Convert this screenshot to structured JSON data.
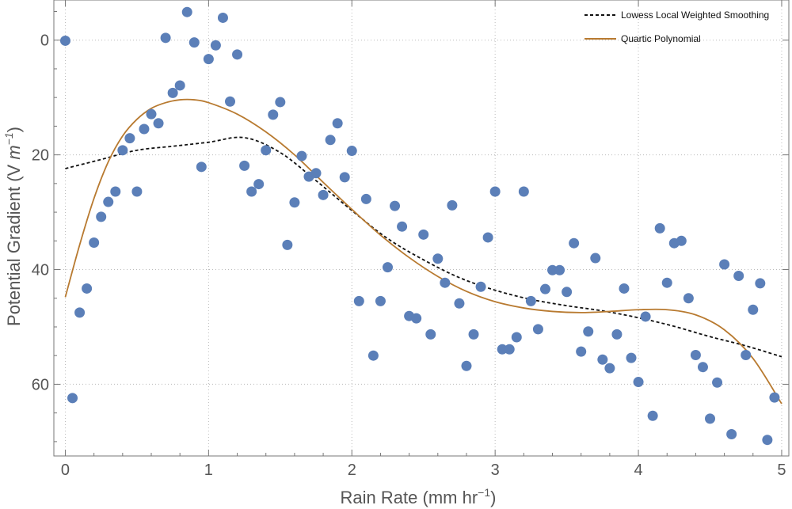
{
  "chart_data": {
    "type": "scatter",
    "xlabel": "Rain Rate (mm hr",
    "xlabel_sup": "−1",
    "xlabel_close": ")",
    "ylabel": "Potential Gradient (V ",
    "ylabel_m": "m",
    "ylabel_sup": "−1",
    "ylabel_close": ")",
    "xlim": [
      -0.08,
      5.05
    ],
    "ylim": [
      72.5,
      -7
    ],
    "y_reversed": true,
    "grid": "dotted",
    "legend_position": "top-right",
    "xticks": [
      0,
      1,
      2,
      3,
      4,
      5
    ],
    "xtick_labels": [
      "0",
      "1",
      "2",
      "3",
      "4",
      "5"
    ],
    "yticks": [
      0,
      20,
      40,
      60
    ],
    "ytick_labels": [
      "0",
      "20",
      "40",
      "60"
    ],
    "colors": {
      "points": "#5b7fb8",
      "lowess": "#111111",
      "quartic": "#b87a30",
      "grid": "#bbbbbb",
      "frame": "#777777"
    },
    "series": [
      {
        "name": "",
        "kind": "scatter",
        "x": [
          0.0,
          0.05,
          0.1,
          0.15,
          0.2,
          0.25,
          0.3,
          0.35,
          0.4,
          0.45,
          0.5,
          0.55,
          0.6,
          0.65,
          0.7,
          0.75,
          0.8,
          0.85,
          0.9,
          0.95,
          1.0,
          1.05,
          1.1,
          1.15,
          1.2,
          1.25,
          1.3,
          1.35,
          1.4,
          1.45,
          1.5,
          1.55,
          1.6,
          1.65,
          1.7,
          1.75,
          1.8,
          1.85,
          1.9,
          1.95,
          2.0,
          2.05,
          2.1,
          2.15,
          2.2,
          2.25,
          2.3,
          2.35,
          2.4,
          2.45,
          2.5,
          2.55,
          2.6,
          2.65,
          2.7,
          2.75,
          2.8,
          2.85,
          2.9,
          2.95,
          3.0,
          3.05,
          3.1,
          3.15,
          3.2,
          3.25,
          3.3,
          3.35,
          3.4,
          3.45,
          3.5,
          3.55,
          3.6,
          3.65,
          3.7,
          3.75,
          3.8,
          3.85,
          3.9,
          3.95,
          4.0,
          4.05,
          4.1,
          4.15,
          4.2,
          4.25,
          4.3,
          4.35,
          4.4,
          4.45,
          4.5,
          4.55,
          4.6,
          4.65,
          4.7,
          4.75,
          4.8,
          4.85,
          4.9,
          4.95
        ],
        "y": [
          0.1,
          62.4,
          47.5,
          43.3,
          35.3,
          30.8,
          28.2,
          26.4,
          19.2,
          17.1,
          26.4,
          15.5,
          12.9,
          14.5,
          -0.4,
          9.2,
          7.9,
          -4.9,
          0.4,
          22.1,
          3.3,
          0.9,
          -3.9,
          10.7,
          2.5,
          21.9,
          26.4,
          25.1,
          19.2,
          13.0,
          10.8,
          35.7,
          28.3,
          20.2,
          23.8,
          23.2,
          27.0,
          17.4,
          14.5,
          23.9,
          19.3,
          45.5,
          27.7,
          55.0,
          45.5,
          39.6,
          28.9,
          32.5,
          48.1,
          48.5,
          33.9,
          51.3,
          38.1,
          42.3,
          28.8,
          45.9,
          56.8,
          51.3,
          43.0,
          34.4,
          26.4,
          53.9,
          53.9,
          51.8,
          26.4,
          45.5,
          50.4,
          43.4,
          40.1,
          40.1,
          43.9,
          35.4,
          54.3,
          50.8,
          38.0,
          55.7,
          57.2,
          51.3,
          43.3,
          55.4,
          59.6,
          48.2,
          65.5,
          32.8,
          42.3,
          35.4,
          35.0,
          45.0,
          54.9,
          57.0,
          66.0,
          59.7,
          39.1,
          68.7,
          41.1,
          54.9,
          47.0,
          42.4,
          69.7,
          62.3
        ]
      },
      {
        "name": "Lowess Local Weighted Smoothing",
        "kind": "line-dashed",
        "x": [
          0.0,
          0.25,
          0.5,
          0.75,
          1.0,
          1.25,
          1.5,
          1.75,
          2.0,
          2.25,
          2.5,
          2.75,
          3.0,
          3.25,
          3.5,
          3.75,
          4.0,
          4.25,
          4.5,
          4.75,
          5.0
        ],
        "y": [
          22.4,
          20.8,
          19.2,
          18.5,
          17.8,
          17.0,
          19.6,
          24.5,
          29.7,
          34.6,
          38.3,
          41.4,
          43.6,
          45.2,
          46.3,
          47.2,
          48.4,
          49.9,
          51.7,
          53.3,
          55.2
        ]
      },
      {
        "name": "Quartic Polynomial",
        "kind": "line",
        "x": [
          0.0,
          0.1,
          0.2,
          0.3,
          0.4,
          0.5,
          0.6,
          0.7,
          0.8,
          0.9,
          1.0,
          1.2,
          1.4,
          1.6,
          1.8,
          2.0,
          2.2,
          2.4,
          2.6,
          2.8,
          3.0,
          3.2,
          3.4,
          3.6,
          3.8,
          4.0,
          4.2,
          4.4,
          4.6,
          4.8,
          5.0
        ],
        "y": [
          44.8,
          35.7,
          27.6,
          21.2,
          16.7,
          13.8,
          11.9,
          10.9,
          10.4,
          10.4,
          10.9,
          12.9,
          16.0,
          20.0,
          24.8,
          29.5,
          34.0,
          37.9,
          41.2,
          43.8,
          45.6,
          46.7,
          47.3,
          47.5,
          47.3,
          47.0,
          47.0,
          47.9,
          50.5,
          55.5,
          63.4
        ]
      }
    ]
  }
}
